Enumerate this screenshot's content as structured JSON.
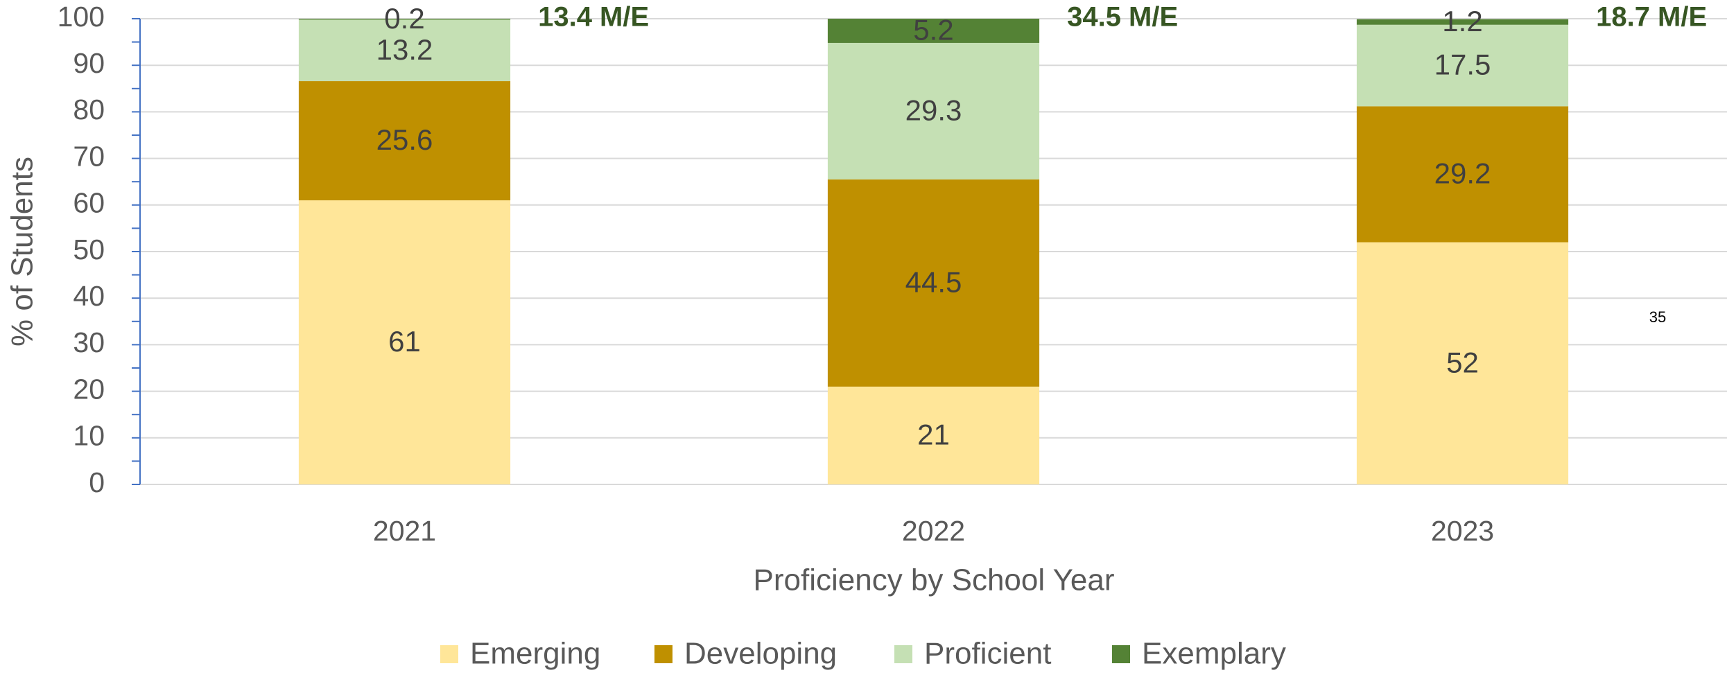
{
  "chart_data": {
    "type": "stacked_bar",
    "xlabel": "Proficiency by School Year",
    "ylabel": "% of Students",
    "categories": [
      "2021",
      "2022",
      "2023"
    ],
    "series": [
      {
        "name": "Emerging",
        "color": "#ffe699",
        "values": [
          61,
          21,
          52
        ]
      },
      {
        "name": "Developing",
        "color": "#bf9000",
        "values": [
          25.6,
          44.5,
          29.2
        ]
      },
      {
        "name": "Proficient",
        "color": "#c5e0b4",
        "values": [
          13.2,
          29.3,
          17.5
        ]
      },
      {
        "name": "Exemplary",
        "color": "#548235",
        "values": [
          0.2,
          5.2,
          1.2
        ]
      }
    ],
    "bar_annotations": [
      "13.4 M/E",
      "34.5 M/E",
      "18.7 M/E"
    ],
    "annotation_color": "#375623",
    "side_note": "35",
    "ylim": [
      0,
      100
    ],
    "yticks": [
      0,
      10,
      20,
      30,
      40,
      50,
      60,
      70,
      80,
      90,
      100
    ],
    "grid": true,
    "legend": "bottom"
  }
}
